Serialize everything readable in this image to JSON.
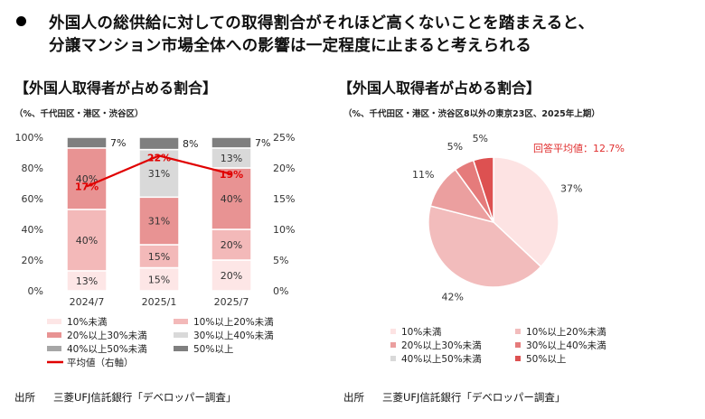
{
  "headline": {
    "line1": "外国人の総供給に対しての取得割合がそれほど高くないことを踏まえると、",
    "line2": "分譲マンション市場全体への影響は一定程度に止まると考えられる"
  },
  "palette": [
    "#fde6e6",
    "#f3b9b9",
    "#e89393",
    "#d9d9d9",
    "#a6a6a6",
    "#7f7f7f",
    "#e03030"
  ],
  "left": {
    "title": "【外国人取得者が占める割合】",
    "note": "（%、千代田区・港区・渋谷区）",
    "source_label": "出所",
    "source_text": "三菱UFJ信託銀行「デベロッパー調査」"
  },
  "right": {
    "title": "【外国人取得者が占める割合】",
    "note": "（%、千代田区・港区・渋谷区8以外の東京23区、2025年上期）",
    "source_label": "出所",
    "source_text": "三菱UFJ信託銀行「デベロッパー調査」"
  },
  "chart_data": [
    {
      "type": "bar",
      "stacked": true,
      "categories": [
        "2024/7",
        "2025/1",
        "2025/7"
      ],
      "ylim": [
        0,
        100
      ],
      "yticks": [
        "0%",
        "20%",
        "40%",
        "60%",
        "80%",
        "100%"
      ],
      "y2lim": [
        0,
        25
      ],
      "y2ticks": [
        "0%",
        "5%",
        "10%",
        "15%",
        "20%",
        "25%"
      ],
      "series": [
        {
          "name": "10%未満",
          "values": [
            13,
            15,
            20
          ],
          "color": "#fde6e6"
        },
        {
          "name": "10%以上20%未満",
          "values": [
            40,
            15,
            20
          ],
          "color": "#f3b9b9"
        },
        {
          "name": "20%以上30%未満",
          "values": [
            40,
            31,
            40
          ],
          "color": "#e89393"
        },
        {
          "name": "30%以上40%未満",
          "values": [
            0,
            31,
            13
          ],
          "color": "#d9d9d9"
        },
        {
          "name": "40%以上50%未満",
          "values": [
            0,
            0,
            0
          ],
          "color": "#a6a6a6"
        },
        {
          "name": "50%以上",
          "values": [
            7,
            8,
            7
          ],
          "color": "#7f7f7f"
        }
      ],
      "labels": [
        [
          "13%",
          "40%",
          "40%",
          "",
          "",
          "7%"
        ],
        [
          "15%",
          "15%",
          "31%",
          "31%",
          "",
          "8%"
        ],
        [
          "20%",
          "20%",
          "40%",
          "13%",
          "",
          "7%"
        ]
      ],
      "line": {
        "name": "平均値（右軸）",
        "values": [
          17,
          22,
          19
        ],
        "labels": [
          "17%",
          "22%",
          "19%"
        ],
        "color": "#e00000"
      },
      "legend": [
        "10%未満",
        "10%以上20%未満",
        "20%以上30%未満",
        "30%以上40%未満",
        "40%以上50%未満",
        "50%以上",
        "平均値（右軸）"
      ]
    },
    {
      "type": "pie",
      "slices": [
        {
          "label": "10%未満",
          "value": 37,
          "text": "37%",
          "color": "#fde3e3"
        },
        {
          "label": "10%以上20%未満",
          "value": 42,
          "text": "42%",
          "color": "#f2bcbc"
        },
        {
          "label": "20%以上30%未満",
          "value": 11,
          "text": "11%",
          "color": "#eb9f9f"
        },
        {
          "label": "30%以上40%未満",
          "value": 5,
          "text": "5%",
          "color": "#e57b7b"
        },
        {
          "label": "40%以上50%未満",
          "value": 0,
          "text": "",
          "color": "#d9d9d9"
        },
        {
          "label": "50%以上",
          "value": 5,
          "text": "5%",
          "color": "#dd5151"
        }
      ],
      "annotation": {
        "prefix": "回答平均値：",
        "value": "12.7%"
      }
    }
  ]
}
